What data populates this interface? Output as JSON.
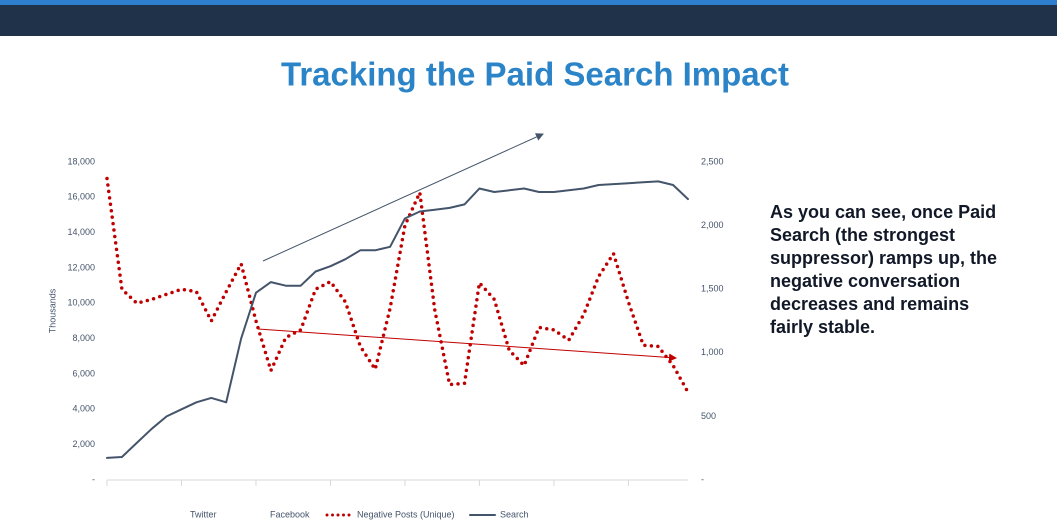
{
  "header": {
    "title": "Tracking the Paid Search Impact"
  },
  "body_text": [
    "As you can see, once Paid",
    "Search (the strongest",
    "suppressor) ramps up, the",
    "negative conversation",
    "decreases and remains",
    "fairly stable."
  ],
  "chart_data": {
    "type": "line",
    "y_label": "Thousands",
    "categories": [
      null,
      null,
      null,
      null,
      null,
      null,
      null,
      null,
      null,
      null,
      null,
      null,
      null,
      null,
      null,
      null,
      null,
      null,
      null,
      null,
      null,
      null,
      null,
      null,
      null,
      null,
      null,
      null,
      null,
      null,
      null,
      null,
      null,
      null,
      null,
      null,
      null,
      null,
      null,
      null
    ],
    "series": [
      {
        "name": "Twitter",
        "values": [
          null,
          null,
          null,
          null,
          null,
          null,
          null,
          null,
          null,
          null,
          null,
          null,
          null,
          null,
          null,
          null,
          null,
          null,
          null,
          null,
          null,
          null,
          null,
          null,
          null,
          null,
          null,
          null,
          null,
          null,
          null,
          null,
          null,
          null,
          null,
          null,
          null,
          null,
          null,
          null
        ]
      },
      {
        "name": "Facebook",
        "values": [
          null,
          null,
          null,
          null,
          null,
          null,
          null,
          null,
          null,
          null,
          null,
          null,
          null,
          null,
          null,
          null,
          null,
          null,
          null,
          null,
          null,
          null,
          null,
          null,
          null,
          null,
          null,
          null,
          null,
          null,
          null,
          null,
          null,
          null,
          null,
          null,
          null,
          null,
          null,
          null
        ]
      },
      {
        "name": "Negative Posts (Unique)",
        "color": "#c00000",
        "line_style": "dotted",
        "axis": "y2",
        "values": [
          2370,
          1500,
          1390,
          1420,
          1460,
          1500,
          1480,
          1250,
          1480,
          1700,
          1250,
          860,
          1120,
          1180,
          1500,
          1560,
          1400,
          1050,
          870,
          1350,
          2000,
          2260,
          1340,
          750,
          760,
          1550,
          1420,
          1020,
          900,
          1200,
          1180,
          1100,
          1300,
          1600,
          1780,
          1400,
          1060,
          1050,
          900,
          690
        ]
      },
      {
        "name": "Search",
        "color": "#44546a",
        "line_style": "solid",
        "values": [
          1250,
          1300,
          2100,
          2900,
          3600,
          4000,
          4400,
          4650,
          4400,
          8000,
          10600,
          11200,
          11000,
          11000,
          11800,
          12100,
          12500,
          13000,
          13000,
          13200,
          14800,
          15200,
          15300,
          15400,
          15600,
          16500,
          16300,
          16400,
          16500,
          16300,
          16300,
          16400,
          16500,
          16700,
          16750,
          16800,
          16850,
          16900,
          16700,
          15900
        ]
      }
    ],
    "ylim": [
      0,
      18000
    ],
    "yticks": [
      {
        "value": 0,
        "label": "-"
      },
      {
        "value": 2000,
        "label": "2,000"
      },
      {
        "value": 4000,
        "label": "4,000"
      },
      {
        "value": 6000,
        "label": "6,000"
      },
      {
        "value": 8000,
        "label": "8,000"
      },
      {
        "value": 10000,
        "label": "10,000"
      },
      {
        "value": 12000,
        "label": "12,000"
      },
      {
        "value": 14000,
        "label": "14,000"
      },
      {
        "value": 16000,
        "label": "16,000"
      },
      {
        "value": 18000,
        "label": "18,000"
      }
    ],
    "y2lim": [
      0,
      2500
    ],
    "y2ticks": [
      {
        "value": 0,
        "label": "-"
      },
      500,
      {
        "value": 1000,
        "label": "1,000"
      },
      {
        "value": 1500,
        "label": "1,500"
      },
      {
        "value": 2000,
        "label": "2,000"
      },
      {
        "value": 2500,
        "label": "2,500"
      }
    ],
    "grid": false
  }
}
